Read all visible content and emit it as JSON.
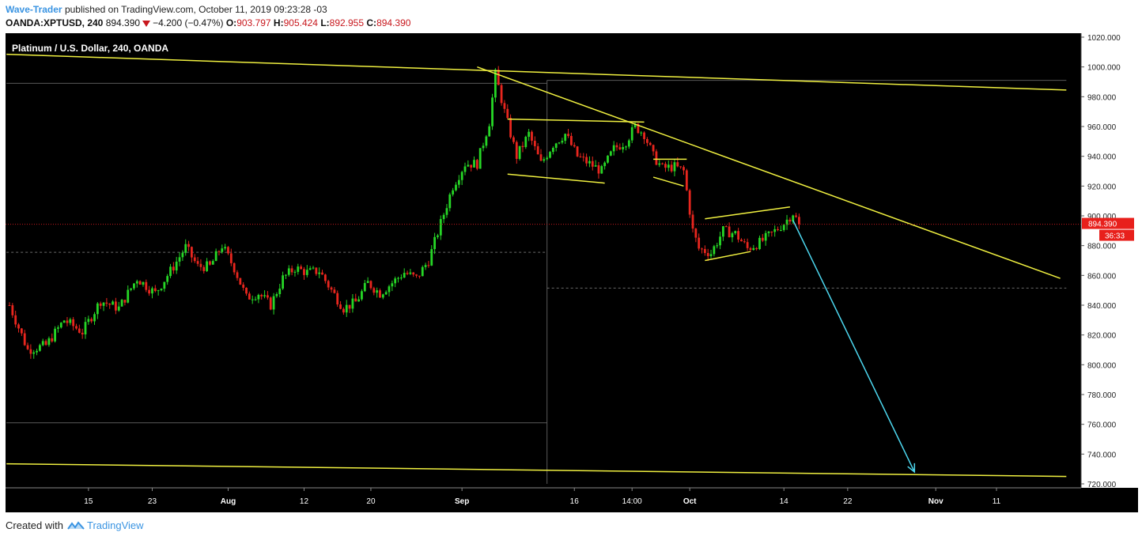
{
  "header": {
    "author": "Wave-Trader",
    "published_text": "published on TradingView.com, October 11, 2019 09:23:28 -03",
    "symbol": "OANDA:XPTUSD, 240",
    "last": "894.390",
    "change": "−4.200 (−0.47%)",
    "o_label": "O:",
    "o_value": "903.797",
    "h_label": "H:",
    "h_value": "905.424",
    "l_label": "L:",
    "l_value": "892.955",
    "c_label": "C:",
    "c_value": "894.390"
  },
  "footer": {
    "created_with": "Created with",
    "brand": "TradingView",
    "logo_icon": "tradingview-logo-icon"
  },
  "chart_data": {
    "type": "candlestick",
    "title": "Platinum / U.S. Dollar, 240, OANDA",
    "ylim": [
      720,
      1020
    ],
    "y_ticks": [
      "1020.000",
      "1000.000",
      "980.000",
      "960.000",
      "940.000",
      "920.000",
      "900.000",
      "880.000",
      "860.000",
      "840.000",
      "820.000",
      "800.000",
      "780.000",
      "760.000",
      "740.000",
      "720.000"
    ],
    "x_ticks": [
      "15",
      "23",
      "Aug",
      "12",
      "20",
      "Sep",
      "16",
      "14:00",
      "Oct",
      "14",
      "22",
      "Nov",
      "11"
    ],
    "x_ticks_bold": [
      "Aug",
      "Sep",
      "Oct",
      "Nov"
    ],
    "price_label": "894.390",
    "countdown_label": "36:33",
    "current_price": 894.39,
    "colors": {
      "background": "#000000",
      "up": "#26d626",
      "down": "#e8261e",
      "trendline": "#f0f040",
      "arrow": "#4dd8f0",
      "price_line": "#c8181e",
      "axis_bg": "#ffffff"
    },
    "anchors": [
      {
        "i": 0,
        "p": 840
      },
      {
        "i": 6,
        "p": 810
      },
      {
        "i": 12,
        "p": 813
      },
      {
        "i": 18,
        "p": 830
      },
      {
        "i": 24,
        "p": 822
      },
      {
        "i": 30,
        "p": 843
      },
      {
        "i": 36,
        "p": 838
      },
      {
        "i": 42,
        "p": 858
      },
      {
        "i": 48,
        "p": 848
      },
      {
        "i": 54,
        "p": 866
      },
      {
        "i": 58,
        "p": 879
      },
      {
        "i": 62,
        "p": 866
      },
      {
        "i": 66,
        "p": 866
      },
      {
        "i": 70,
        "p": 880
      },
      {
        "i": 74,
        "p": 865
      },
      {
        "i": 78,
        "p": 845
      },
      {
        "i": 82,
        "p": 848
      },
      {
        "i": 86,
        "p": 840
      },
      {
        "i": 90,
        "p": 858
      },
      {
        "i": 94,
        "p": 865
      },
      {
        "i": 98,
        "p": 862
      },
      {
        "i": 102,
        "p": 863
      },
      {
        "i": 106,
        "p": 850
      },
      {
        "i": 110,
        "p": 838
      },
      {
        "i": 114,
        "p": 842
      },
      {
        "i": 118,
        "p": 855
      },
      {
        "i": 122,
        "p": 848
      },
      {
        "i": 126,
        "p": 855
      },
      {
        "i": 130,
        "p": 862
      },
      {
        "i": 134,
        "p": 858
      },
      {
        "i": 138,
        "p": 870
      },
      {
        "i": 142,
        "p": 895
      },
      {
        "i": 146,
        "p": 920
      },
      {
        "i": 150,
        "p": 935
      },
      {
        "i": 154,
        "p": 935
      },
      {
        "i": 158,
        "p": 963
      },
      {
        "i": 160,
        "p": 995
      },
      {
        "i": 163,
        "p": 970
      },
      {
        "i": 167,
        "p": 940
      },
      {
        "i": 171,
        "p": 955
      },
      {
        "i": 175,
        "p": 935
      },
      {
        "i": 179,
        "p": 948
      },
      {
        "i": 183,
        "p": 955
      },
      {
        "i": 187,
        "p": 940
      },
      {
        "i": 191,
        "p": 935
      },
      {
        "i": 195,
        "p": 930
      },
      {
        "i": 199,
        "p": 945
      },
      {
        "i": 203,
        "p": 950
      },
      {
        "i": 206,
        "p": 960
      },
      {
        "i": 209,
        "p": 955
      },
      {
        "i": 212,
        "p": 940
      },
      {
        "i": 215,
        "p": 932
      },
      {
        "i": 219,
        "p": 933
      },
      {
        "i": 222,
        "p": 930
      },
      {
        "i": 225,
        "p": 890
      },
      {
        "i": 227,
        "p": 878
      },
      {
        "i": 231,
        "p": 875
      },
      {
        "i": 235,
        "p": 890
      },
      {
        "i": 239,
        "p": 888
      },
      {
        "i": 243,
        "p": 878
      },
      {
        "i": 247,
        "p": 882
      },
      {
        "i": 251,
        "p": 888
      },
      {
        "i": 255,
        "p": 895
      },
      {
        "i": 258,
        "p": 902
      },
      {
        "i": 260,
        "p": 894.39
      }
    ],
    "trendlines": [
      {
        "i1": -1,
        "p1": 1008.5,
        "i2": 348,
        "p2": 984.5
      },
      {
        "i1": 154,
        "p1": 1000,
        "i2": 346,
        "p2": 858
      },
      {
        "i1": -1,
        "p1": 733.5,
        "i2": 348,
        "p2": 725
      },
      {
        "i1": 164,
        "p1": 965,
        "i2": 209,
        "p2": 963
      },
      {
        "i1": 164,
        "p1": 928,
        "i2": 196,
        "p2": 922
      },
      {
        "i1": 212,
        "p1": 938,
        "i2": 223,
        "p2": 938
      },
      {
        "i1": 212,
        "p1": 926,
        "i2": 222,
        "p2": 920
      },
      {
        "i1": 229,
        "p1": 898,
        "i2": 257,
        "p2": 906
      },
      {
        "i1": 229,
        "p1": 870,
        "i2": 244,
        "p2": 876
      }
    ],
    "arrow": {
      "i1": 258,
      "p1": 897,
      "i2": 298,
      "p2": 728
    },
    "grey_lines": [
      {
        "i1": -1,
        "p1": 989,
        "i2": 177,
        "p2": 989
      },
      {
        "i1": -1,
        "p1": 761,
        "i2": 177,
        "p2": 761
      },
      {
        "i1": 177,
        "p1": 991,
        "i2": 348,
        "p2": 991
      },
      {
        "i1": 177,
        "p1": 991,
        "i2": 177,
        "p2": 720
      }
    ],
    "dashed_lines": [
      {
        "i1": -1,
        "p1": 875.5,
        "i2": 177,
        "p2": 875.5
      },
      {
        "i1": 177,
        "p1": 851.5,
        "i2": 348,
        "p2": 851.5
      }
    ],
    "x_tick_index": [
      26,
      47,
      72,
      97,
      119,
      149,
      186,
      205,
      224,
      255,
      276,
      305,
      325
    ]
  }
}
